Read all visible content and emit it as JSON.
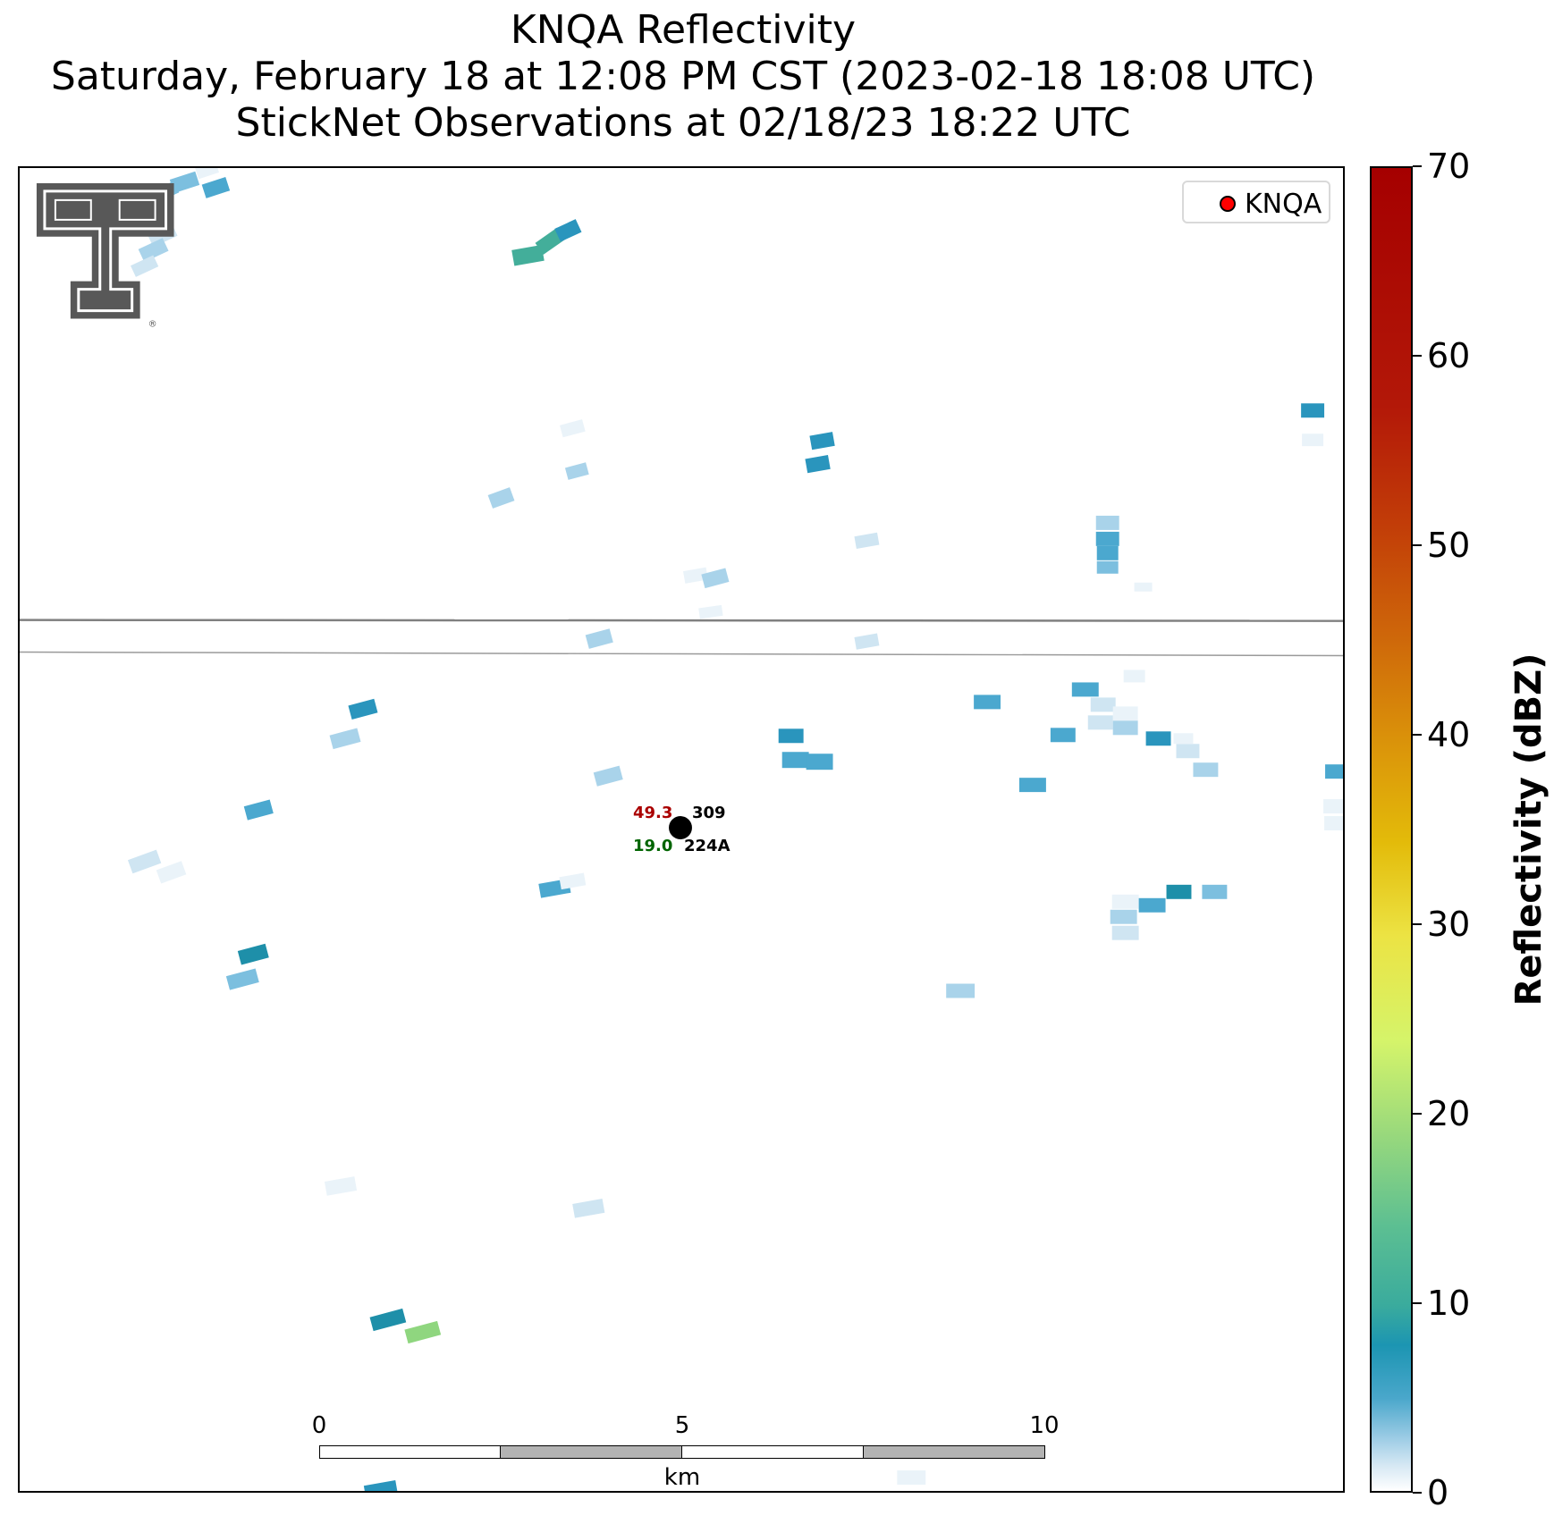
{
  "title": {
    "line1": "KNQA Reflectivity",
    "line2": "Saturday, February 18 at 12:08 PM CST (2023-02-18 18:08 UTC)",
    "line3": "StickNet Observations at 02/18/23 18:22 UTC"
  },
  "legend": {
    "label": "KNQA",
    "marker_color": "#ff0000"
  },
  "station": {
    "temperature": "49.3",
    "dewpoint": "19.0",
    "pressure": "309",
    "id": "224A",
    "temperature_color": "#aa0000",
    "dewpoint_color": "#006400"
  },
  "scale_bar": {
    "ticks": [
      "0",
      "5",
      "10"
    ],
    "unit": "km"
  },
  "colorbar": {
    "title": "Reflectivity (dBZ)",
    "min": 0,
    "max": 70,
    "ticks": [
      "0",
      "10",
      "20",
      "30",
      "40",
      "50",
      "60",
      "70"
    ]
  },
  "logo": {
    "name": "Texas Tech Double T",
    "registered_mark": "®"
  },
  "colors": {
    "road": "#808080",
    "scale_fill": "#b3b3b3"
  }
}
